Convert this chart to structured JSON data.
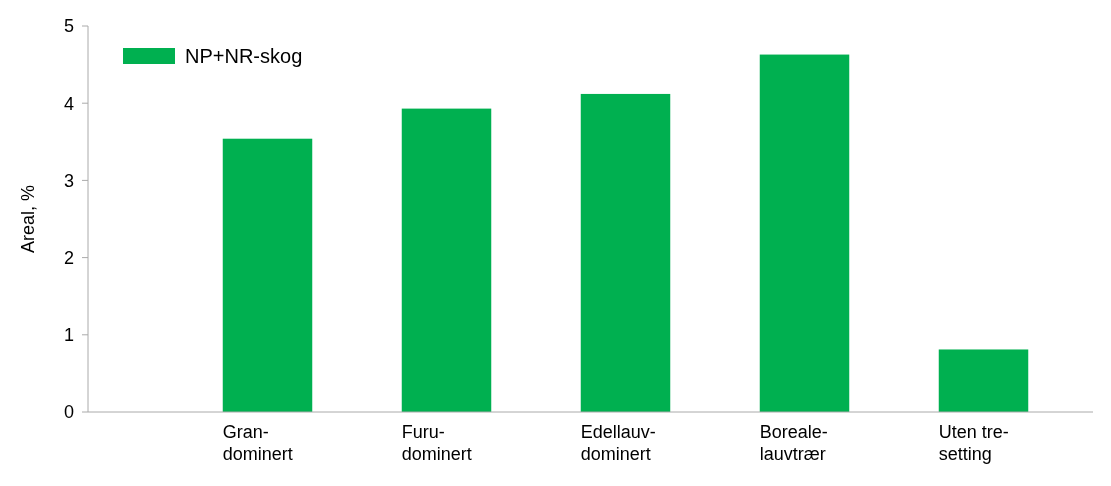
{
  "chart_data": {
    "type": "bar",
    "ylabel": "Areal, %",
    "categories": [
      "Gran-\ndominert",
      "Furu-\ndominert",
      "Edellauv-\ndominert",
      "Boreale-\nlauvtrær",
      "Uten tre-\nsetting"
    ],
    "series": [
      {
        "name": "NP+NR-skog",
        "color": "#00b050",
        "values": [
          3.54,
          3.93,
          4.12,
          4.63,
          0.81
        ]
      }
    ],
    "ylim": [
      0,
      5
    ],
    "yticks": [
      0,
      1,
      2,
      3,
      4,
      5
    ],
    "grid": false,
    "legend": "top left"
  }
}
